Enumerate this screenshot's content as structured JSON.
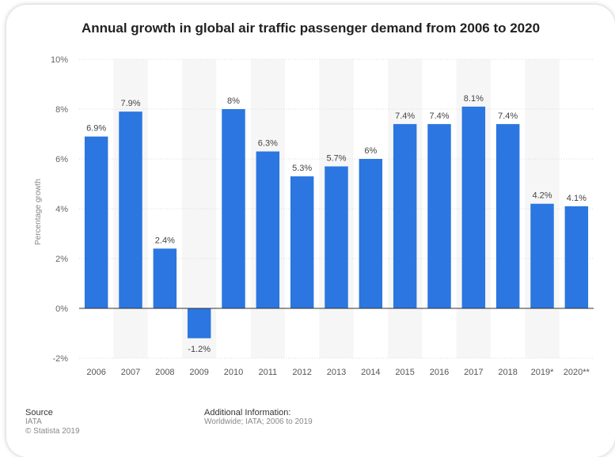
{
  "chart_data": {
    "type": "bar",
    "title": "Annual growth in global air traffic passenger demand from 2006 to 2020",
    "ylabel": "Percentage growth",
    "xlabel": "",
    "categories": [
      "2006",
      "2007",
      "2008",
      "2009",
      "2010",
      "2011",
      "2012",
      "2013",
      "2014",
      "2015",
      "2016",
      "2017",
      "2018",
      "2019*",
      "2020**"
    ],
    "values": [
      6.9,
      7.9,
      2.4,
      -1.2,
      8,
      6.3,
      5.3,
      5.7,
      6,
      7.4,
      7.4,
      8.1,
      7.4,
      4.2,
      4.1
    ],
    "value_labels": [
      "6.9%",
      "7.9%",
      "2.4%",
      "-1.2%",
      "8%",
      "6.3%",
      "5.3%",
      "5.7%",
      "6%",
      "7.4%",
      "7.4%",
      "8.1%",
      "7.4%",
      "4.2%",
      "4.1%"
    ],
    "ylim": [
      -2,
      10
    ],
    "yticks": [
      10,
      8,
      6,
      4,
      2,
      0,
      -2
    ],
    "ytick_labels": [
      "10%",
      "8%",
      "6%",
      "4%",
      "2%",
      "0%",
      "-2%"
    ],
    "bar_color": "#2b76e0",
    "grid": true,
    "legend": "none"
  },
  "footer": {
    "source_heading": "Source",
    "source_name": "IATA",
    "copyright": "© Statista 2019",
    "info_heading": "Additional Information:",
    "info_text": "Worldwide; IATA; 2006 to 2019"
  }
}
